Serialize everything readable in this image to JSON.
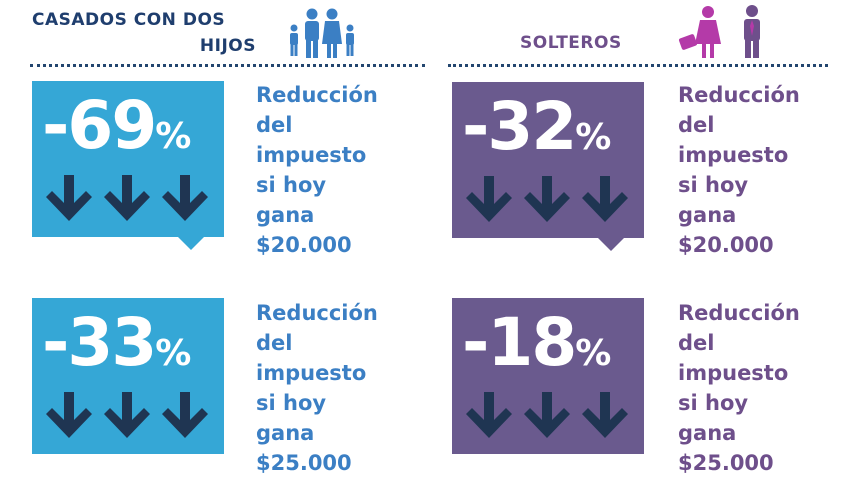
{
  "headers": {
    "left_line1": "CASADOS CON DOS",
    "left_line2": "HIJOS",
    "right": "SOLTEROS"
  },
  "icons": {
    "left": "family-icon",
    "right": "single-people-icon"
  },
  "colors": {
    "blue_box": "#35a7d6",
    "purple_box": "#6a5a8e",
    "arrow": "#1f3552",
    "blue_text": "#3b7fc4",
    "purple_text": "#6e4f8b",
    "dark_header": "#1f3e6e"
  },
  "cards": [
    {
      "value": "-69",
      "unit": "%",
      "line1": "Reducción",
      "line2": "del",
      "line3": "impuesto",
      "line4": "si hoy",
      "line5": "gana",
      "amount": "$20.000"
    },
    {
      "value": "-32",
      "unit": "%",
      "line1": "Reducción",
      "line2": "del",
      "line3": "impuesto",
      "line4": "si hoy",
      "line5": "gana",
      "amount": "$20.000"
    },
    {
      "value": "-33",
      "unit": "%",
      "line1": "Reducción",
      "line2": "del",
      "line3": "impuesto",
      "line4": "si hoy",
      "line5": "gana",
      "amount": "$25.000"
    },
    {
      "value": "-18",
      "unit": "%",
      "line1": "Reducción",
      "line2": "del",
      "line3": "impuesto",
      "line4": "si hoy",
      "line5": "gana",
      "amount": "$25.000"
    }
  ]
}
